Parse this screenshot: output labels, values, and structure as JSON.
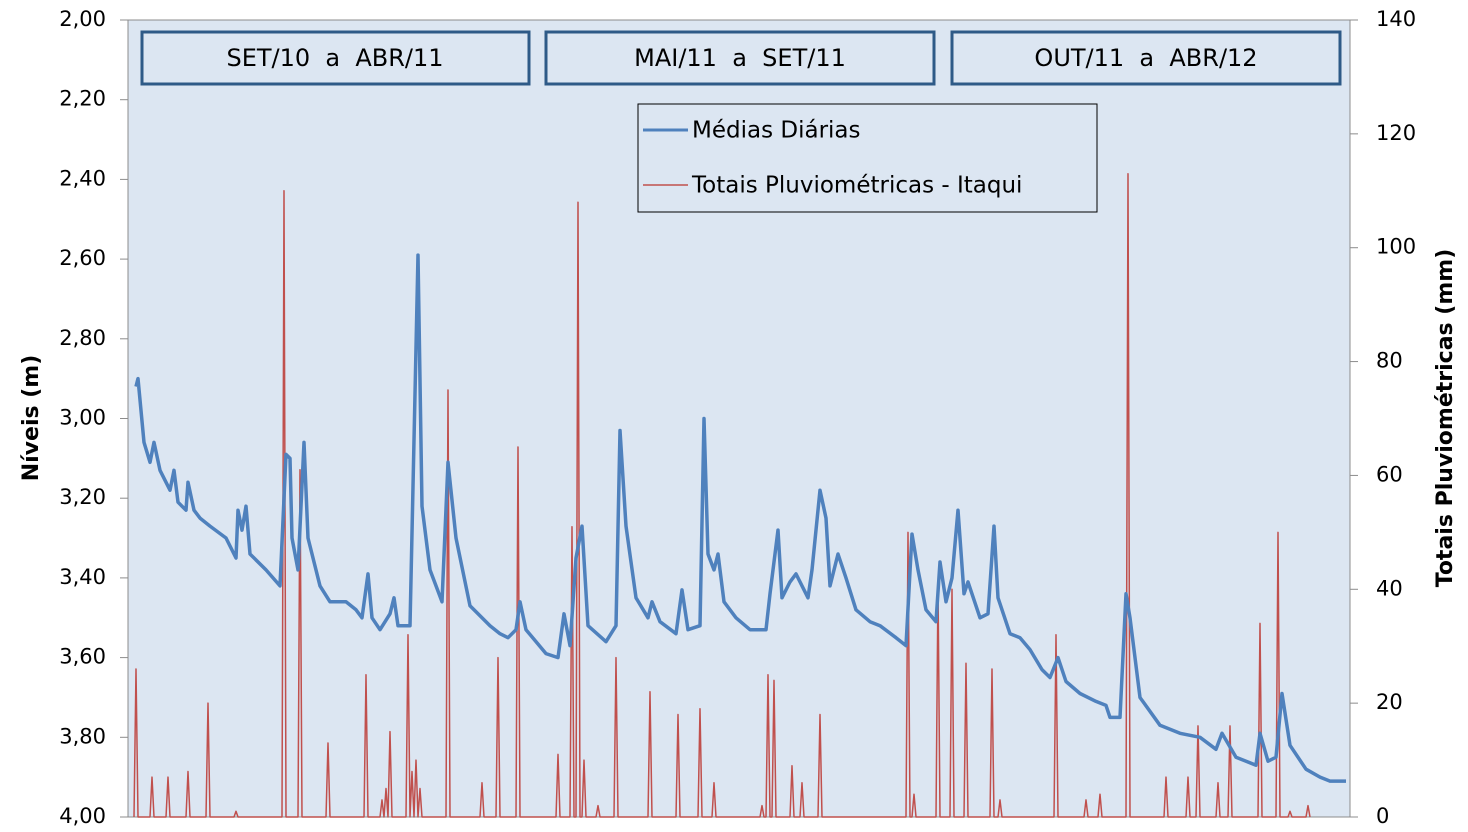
{
  "chart_data": {
    "type": "line",
    "y_label": "Níveis (m)",
    "y2_label": "Totais Pluviométricas (mm)",
    "annotations": [
      "SET/10  a  ABR/11",
      "MAI/11  a  SET/11",
      "OUT/11  a  ABR/12"
    ],
    "xlim": [
      0,
      611
    ],
    "ylim": [
      4,
      2
    ],
    "yticks": [
      {
        "value": 2,
        "label": "2,00"
      },
      {
        "value": 2.2,
        "label": "2,20"
      },
      {
        "value": 2.4,
        "label": "2,40"
      },
      {
        "value": 2.6,
        "label": "2,60"
      },
      {
        "value": 2.8,
        "label": "2,80"
      },
      {
        "value": 3,
        "label": "3,00"
      },
      {
        "value": 3.2,
        "label": "3,20"
      },
      {
        "value": 3.4,
        "label": "3,40"
      },
      {
        "value": 3.6,
        "label": "3,60"
      },
      {
        "value": 3.8,
        "label": "3,80"
      },
      {
        "value": 4,
        "label": "4,00"
      }
    ],
    "y2lim": [
      0,
      140
    ],
    "y2ticks": [
      0,
      20,
      40,
      60,
      80,
      100,
      120,
      140
    ],
    "series": [
      {
        "name": "Médias Diárias",
        "color": "#4f81bd",
        "x": [
          4,
          5,
          8,
          11,
          13,
          16,
          21,
          23,
          25,
          29,
          30,
          33,
          36,
          41,
          49,
          54,
          55,
          57,
          59,
          61,
          69,
          76,
          79,
          81,
          82,
          85,
          88,
          90,
          96,
          101,
          109,
          114,
          117,
          120,
          122,
          126,
          131,
          133,
          135,
          141,
          145,
          147,
          151,
          157,
          160,
          164,
          171,
          181,
          186,
          190,
          194,
          196,
          199,
          209,
          215,
          218,
          221,
          224,
          227,
          230,
          239,
          244,
          246,
          249,
          254,
          260,
          262,
          266,
          274,
          277,
          280,
          286,
          288,
          290,
          293,
          295,
          298,
          304,
          311,
          319,
          321,
          325,
          327,
          331,
          334,
          340,
          342,
          346,
          349,
          351,
          355,
          359,
          364,
          371,
          376,
          384,
          389,
          392,
          395,
          399,
          404,
          406,
          409,
          412,
          415,
          418,
          420,
          426,
          430,
          433,
          435,
          441,
          446,
          451,
          457,
          461,
          465,
          469,
          476,
          484,
          489,
          491,
          496,
          499,
          501,
          506,
          516,
          526,
          536,
          544,
          547,
          554,
          564,
          566,
          570,
          574,
          577,
          581,
          589,
          596,
          601,
          609
        ],
        "values": [
          2.92,
          2.9,
          3.06,
          3.11,
          3.06,
          3.13,
          3.18,
          3.13,
          3.21,
          3.23,
          3.16,
          3.23,
          3.25,
          3.27,
          3.3,
          3.35,
          3.23,
          3.28,
          3.22,
          3.34,
          3.38,
          3.42,
          3.09,
          3.1,
          3.3,
          3.38,
          3.06,
          3.3,
          3.42,
          3.46,
          3.46,
          3.48,
          3.5,
          3.39,
          3.5,
          3.53,
          3.49,
          3.45,
          3.52,
          3.52,
          2.59,
          3.22,
          3.38,
          3.46,
          3.11,
          3.3,
          3.47,
          3.52,
          3.54,
          3.55,
          3.53,
          3.46,
          3.53,
          3.59,
          3.6,
          3.49,
          3.57,
          3.35,
          3.27,
          3.52,
          3.56,
          3.52,
          3.03,
          3.27,
          3.45,
          3.5,
          3.46,
          3.51,
          3.54,
          3.43,
          3.53,
          3.52,
          3.0,
          3.34,
          3.38,
          3.34,
          3.46,
          3.5,
          3.53,
          3.53,
          3.44,
          3.28,
          3.45,
          3.41,
          3.39,
          3.45,
          3.38,
          3.18,
          3.25,
          3.42,
          3.34,
          3.4,
          3.48,
          3.51,
          3.52,
          3.55,
          3.57,
          3.29,
          3.38,
          3.48,
          3.51,
          3.36,
          3.46,
          3.4,
          3.23,
          3.44,
          3.41,
          3.5,
          3.49,
          3.27,
          3.45,
          3.54,
          3.55,
          3.58,
          3.63,
          3.65,
          3.6,
          3.66,
          3.69,
          3.71,
          3.72,
          3.75,
          3.75,
          3.44,
          3.5,
          3.7,
          3.77,
          3.79,
          3.8,
          3.83,
          3.79,
          3.85,
          3.87,
          3.79,
          3.86,
          3.85,
          3.69,
          3.82,
          3.88,
          3.9,
          3.91,
          3.91
        ]
      },
      {
        "name": "Totais Pluviométricas - Itaqui",
        "color": "#c0504d",
        "axis": "y2",
        "x": [
          3,
          4,
          5,
          11,
          12,
          13,
          19,
          20,
          21,
          29,
          30,
          31,
          39,
          40,
          41,
          53,
          54,
          55,
          77,
          78,
          79,
          85,
          86,
          87,
          99,
          100,
          101,
          118,
          119,
          120,
          126,
          127,
          128,
          129,
          130,
          131,
          132,
          139,
          140,
          141,
          142,
          143,
          144,
          145,
          146,
          147,
          159,
          160,
          161,
          176,
          177,
          178,
          184,
          185,
          186,
          194,
          195,
          196,
          214,
          215,
          216,
          221,
          222,
          223,
          224,
          225,
          226,
          227,
          228,
          229,
          234,
          235,
          236,
          243,
          244,
          245,
          260,
          261,
          262,
          274,
          275,
          276,
          285,
          286,
          287,
          292,
          293,
          294,
          316,
          317,
          318,
          319,
          320,
          321,
          322,
          323,
          324,
          331,
          332,
          333,
          336,
          337,
          338,
          345,
          346,
          347,
          389,
          390,
          391,
          392,
          393,
          394,
          404,
          405,
          406,
          411,
          412,
          413,
          418,
          419,
          420,
          431,
          432,
          433,
          435,
          436,
          437,
          463,
          464,
          465,
          478,
          479,
          480,
          485,
          486,
          487,
          499,
          500,
          501,
          518,
          519,
          520,
          529,
          530,
          531,
          534,
          535,
          536,
          544,
          545,
          546,
          550,
          551,
          552,
          565,
          566,
          567,
          574,
          575,
          576,
          580,
          581,
          582,
          589,
          590,
          591
        ],
        "values": [
          0,
          26,
          0,
          0,
          7,
          0,
          0,
          7,
          0,
          0,
          8,
          0,
          0,
          20,
          0,
          0,
          1,
          0,
          0,
          110,
          0,
          0,
          61,
          0,
          0,
          13,
          0,
          0,
          25,
          0,
          0,
          3,
          0,
          5,
          0,
          15,
          0,
          0,
          32,
          0,
          8,
          0,
          10,
          0,
          5,
          0,
          0,
          75,
          0,
          0,
          6,
          0,
          0,
          28,
          0,
          0,
          65,
          0,
          0,
          11,
          0,
          0,
          51,
          0,
          0,
          108,
          0,
          0,
          10,
          0,
          0,
          2,
          0,
          0,
          28,
          0,
          0,
          22,
          0,
          0,
          18,
          0,
          0,
          19,
          0,
          0,
          6,
          0,
          0,
          2,
          0,
          0,
          25,
          0,
          0,
          24,
          0,
          0,
          9,
          0,
          0,
          6,
          0,
          0,
          18,
          0,
          0,
          50,
          0,
          0,
          4,
          0,
          0,
          41,
          0,
          0,
          40,
          0,
          0,
          27,
          0,
          0,
          26,
          0,
          0,
          3,
          0,
          0,
          32,
          0,
          0,
          3,
          0,
          0,
          4,
          0,
          0,
          113,
          0,
          0,
          7,
          0,
          0,
          7,
          0,
          0,
          16,
          0,
          0,
          6,
          0,
          0,
          16,
          0,
          0,
          34,
          0,
          0,
          50,
          0,
          0,
          1,
          0,
          0,
          2,
          0
        ]
      }
    ]
  }
}
